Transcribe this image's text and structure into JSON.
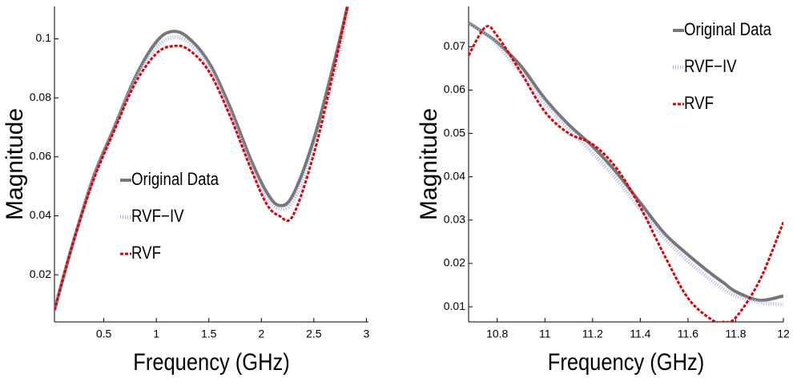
{
  "chart_data": [
    {
      "type": "line",
      "xlabel": "Frequency (GHz)",
      "ylabel": "Magnitude",
      "x": [
        0.03,
        0.2,
        0.4,
        0.6,
        0.8,
        1.0,
        1.15,
        1.3,
        1.5,
        1.7,
        1.9,
        2.05,
        2.17,
        2.3,
        2.5,
        2.7,
        2.82
      ],
      "series": [
        {
          "name": "Original Data",
          "color": "#777777",
          "values": [
            0.008,
            0.03,
            0.053,
            0.07,
            0.087,
            0.099,
            0.1025,
            0.1005,
            0.092,
            0.077,
            0.059,
            0.048,
            0.0435,
            0.047,
            0.066,
            0.093,
            0.111
          ]
        },
        {
          "name": "RVF−IV",
          "color": "#aab4ea",
          "values": [
            0.008,
            0.03,
            0.052,
            0.069,
            0.086,
            0.097,
            0.1005,
            0.099,
            0.0905,
            0.075,
            0.057,
            0.046,
            0.0425,
            0.045,
            0.062,
            0.089,
            0.108
          ]
        },
        {
          "name": "RVF",
          "color": "#e00000",
          "values": [
            0.008,
            0.03,
            0.052,
            0.069,
            0.085,
            0.095,
            0.0975,
            0.0965,
            0.089,
            0.074,
            0.056,
            0.044,
            0.04,
            0.04,
            0.061,
            0.091,
            0.111
          ]
        }
      ],
      "xlim": [
        0.03,
        3.02
      ],
      "ylim": [
        0.004,
        0.111
      ],
      "xticks": [
        0.5,
        1,
        1.5,
        2,
        2.5,
        3
      ],
      "yticks": [
        0.02,
        0.04,
        0.06,
        0.08,
        0.1
      ],
      "legend": "center-left"
    },
    {
      "type": "line",
      "xlabel": "Frequency (GHz)",
      "ylabel": "Magnitude",
      "x": [
        10.68,
        10.75,
        10.8,
        10.9,
        11.0,
        11.1,
        11.2,
        11.3,
        11.4,
        11.5,
        11.6,
        11.7,
        11.75,
        11.8,
        11.9,
        12
      ],
      "series": [
        {
          "name": "Original Data",
          "color": "#777777",
          "values": [
            0.0755,
            0.073,
            0.071,
            0.0655,
            0.058,
            0.052,
            0.047,
            0.041,
            0.034,
            0.027,
            0.022,
            0.0175,
            0.0155,
            0.0135,
            0.0115,
            0.0125
          ]
        },
        {
          "name": "RVF−IV",
          "color": "#aab4ea",
          "values": [
            0.0755,
            0.073,
            0.0705,
            0.064,
            0.057,
            0.051,
            0.0455,
            0.0395,
            0.0325,
            0.026,
            0.0205,
            0.016,
            0.014,
            0.0125,
            0.011,
            0.0105
          ]
        },
        {
          "name": "RVF",
          "color": "#e00000",
          "values": [
            0.068,
            0.0745,
            0.0725,
            0.064,
            0.055,
            0.05,
            0.0475,
            0.042,
            0.033,
            0.022,
            0.012,
            0.007,
            0.0065,
            0.0075,
            0.016,
            0.0295
          ]
        }
      ],
      "xlim": [
        10.68,
        12
      ],
      "ylim": [
        0.0065,
        0.0793
      ],
      "xticks": [
        10.8,
        11,
        11.2,
        11.4,
        11.6,
        11.8,
        12
      ],
      "yticks": [
        0.01,
        0.02,
        0.03,
        0.04,
        0.05,
        0.06,
        0.07
      ],
      "legend": "upper-right"
    }
  ]
}
